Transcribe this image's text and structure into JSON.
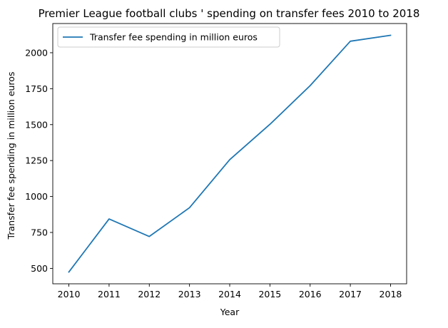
{
  "chart_data": {
    "type": "line",
    "title": "Premier League football clubs ' spending on transfer fees 2010 to 2018",
    "xlabel": "Year",
    "ylabel": "Transfer fee spending in million euros",
    "x": [
      2010,
      2011,
      2012,
      2013,
      2014,
      2015,
      2016,
      2017,
      2018
    ],
    "series": [
      {
        "name": "Transfer fee spending in million euros",
        "values": [
          475,
          844,
          722,
          922,
          1256,
          1502,
          1771,
          2080,
          2121
        ],
        "color": "#1f77b4"
      }
    ],
    "xlim": [
      2009.6,
      2018.4
    ],
    "ylim": [
      393,
      2203
    ],
    "xticks": [
      "2010",
      "2011",
      "2012",
      "2013",
      "2014",
      "2015",
      "2016",
      "2017",
      "2018"
    ],
    "yticks": [
      500,
      750,
      1000,
      1250,
      1500,
      1750,
      2000
    ],
    "ytick_labels": [
      "500",
      "750",
      "1000",
      "1250",
      "1500",
      "1750",
      "2000"
    ],
    "grid": false,
    "legend_position": "upper-left"
  }
}
